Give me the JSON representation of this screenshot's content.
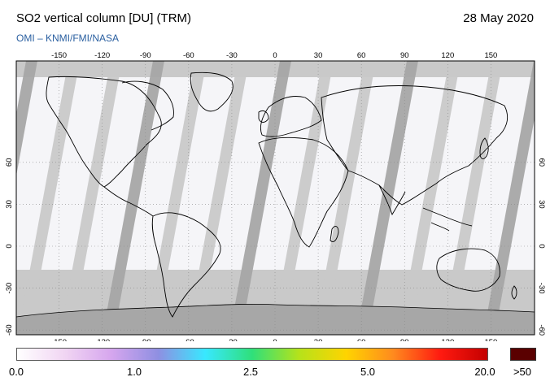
{
  "header": {
    "title": "SO2 vertical column [DU] (TRM)",
    "date": "28 May 2020",
    "credit": "OMI  –  KNMI/FMI/NASA"
  },
  "map": {
    "lon_ticks": [
      "-150",
      "-120",
      "-90",
      "-60",
      "-30",
      "0",
      "30",
      "60",
      "90",
      "120",
      "150"
    ],
    "lat_ticks": [
      "60",
      "30",
      "0",
      "-30",
      "-60"
    ],
    "colors": {
      "no_data": "#c9c9c9",
      "overlap": "#a7a7a7",
      "background": "#f5f5f8",
      "coast": "#000000"
    }
  },
  "colorbar": {
    "labels": [
      "0.0",
      "1.0",
      "2.5",
      "5.0",
      "20.0"
    ],
    "over_label": ">50",
    "colors": [
      "#ffffff",
      "#f1d6f3",
      "#d6a6ee",
      "#8f8fe2",
      "#38e8ff",
      "#2fe07a",
      "#b6e21a",
      "#ffd400",
      "#ff8a1e",
      "#ff1a10",
      "#c40000"
    ],
    "over_color": "#5a0000"
  }
}
